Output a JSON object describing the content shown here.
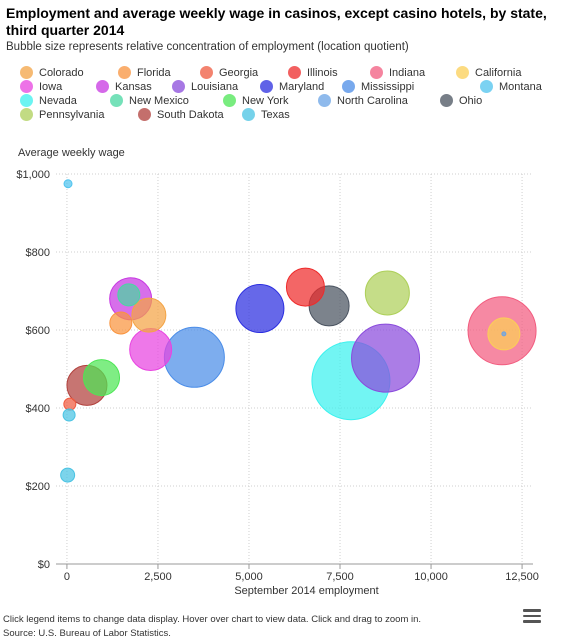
{
  "chart_data": {
    "type": "scatter",
    "title": "Employment and average weekly wage in casinos, except casino hotels, by state, third quarter 2014",
    "subtitle": "Bubble size represents relative concentration of employment (location quotient)",
    "xlabel": "September 2014 employment",
    "ylabel": "Average weekly wage",
    "xlim": [
      -300,
      12800
    ],
    "ylim": [
      0,
      1000
    ],
    "x_ticks": [
      0,
      2500,
      5000,
      7500,
      10000,
      12500
    ],
    "x_tick_labels": [
      "0",
      "2,500",
      "5,000",
      "7,500",
      "10,000",
      "12,500"
    ],
    "y_ticks": [
      0,
      200,
      400,
      600,
      800,
      1000
    ],
    "y_tick_labels": [
      "$0",
      "$200",
      "$400",
      "$600",
      "$800",
      "$1,000"
    ],
    "grid": true,
    "legend_position": "top",
    "series": [
      {
        "name": "Colorado",
        "color": "#f4a445",
        "x": 2250,
        "y": 638,
        "r": 17
      },
      {
        "name": "Florida",
        "color": "#f9943e",
        "x": 1480,
        "y": 618,
        "r": 11
      },
      {
        "name": "Georgia",
        "color": "#f05a3f",
        "x": 80,
        "y": 410,
        "r": 6
      },
      {
        "name": "Illinois",
        "color": "#ee2b2b",
        "x": 6550,
        "y": 710,
        "r": 19
      },
      {
        "name": "Indiana",
        "color": "#f25c7f",
        "x": 11950,
        "y": 598,
        "r": 34
      },
      {
        "name": "California",
        "color": "#fbcf57",
        "x": 12000,
        "y": 590,
        "r": 16
      },
      {
        "name": "Iowa",
        "color": "#e844e0",
        "x": 2300,
        "y": 550,
        "r": 21
      },
      {
        "name": "Kansas",
        "color": "#c737e2",
        "x": 1750,
        "y": 680,
        "r": 21
      },
      {
        "name": "Louisiana",
        "color": "#8a4bdc",
        "x": 8750,
        "y": 528,
        "r": 34
      },
      {
        "name": "Maryland",
        "color": "#2b2ee0",
        "x": 5300,
        "y": 655,
        "r": 24
      },
      {
        "name": "Mississippi",
        "color": "#4b8de8",
        "x": 3500,
        "y": 530,
        "r": 30
      },
      {
        "name": "Montana",
        "color": "#4fc3ee",
        "x": 30,
        "y": 975,
        "r": 4
      },
      {
        "name": "Nevada",
        "color": "#3bf1ee",
        "x": 7800,
        "y": 470,
        "r": 39
      },
      {
        "name": "New Mexico",
        "color": "#48d7a2",
        "x": 1700,
        "y": 690,
        "r": 11
      },
      {
        "name": "New York",
        "color": "#4de655",
        "x": 950,
        "y": 478,
        "r": 18
      },
      {
        "name": "North Carolina",
        "color": "#6aa4e6",
        "x": 12000,
        "y": 590,
        "r": 2
      },
      {
        "name": "Ohio",
        "color": "#4a5360",
        "x": 7200,
        "y": 662,
        "r": 20
      },
      {
        "name": "Pennsylvania",
        "color": "#aed05a",
        "x": 8800,
        "y": 695,
        "r": 22
      },
      {
        "name": "South Dakota",
        "color": "#b1403c",
        "x": 550,
        "y": 458,
        "r": 20
      },
      {
        "name": "Texas",
        "color": "#49c3e3",
        "x": 60,
        "y": 382,
        "r": 6
      },
      {
        "name": "Texas-2",
        "color": "#49c3e3",
        "x": 20,
        "y": 228,
        "r": 7
      }
    ]
  },
  "legend": {
    "items": [
      {
        "label": "Colorado",
        "color": "#f4a445"
      },
      {
        "label": "Florida",
        "color": "#f9943e"
      },
      {
        "label": "Georgia",
        "color": "#f05a3f"
      },
      {
        "label": "Illinois",
        "color": "#ee2b2b"
      },
      {
        "label": "Indiana",
        "color": "#f25c7f"
      },
      {
        "label": "California",
        "color": "#fbcf57"
      },
      {
        "label": "Iowa",
        "color": "#e844e0"
      },
      {
        "label": "Kansas",
        "color": "#c737e2"
      },
      {
        "label": "Louisiana",
        "color": "#8a4bdc"
      },
      {
        "label": "Maryland",
        "color": "#2b2ee0"
      },
      {
        "label": "Mississippi",
        "color": "#4b8de8"
      },
      {
        "label": "Montana",
        "color": "#4fc3ee"
      },
      {
        "label": "Nevada",
        "color": "#3bf1ee"
      },
      {
        "label": "New Mexico",
        "color": "#48d7a2"
      },
      {
        "label": "New York",
        "color": "#4de655"
      },
      {
        "label": "North Carolina",
        "color": "#6aa4e6"
      },
      {
        "label": "Ohio",
        "color": "#4a5360"
      },
      {
        "label": "Pennsylvania",
        "color": "#aed05a"
      },
      {
        "label": "South Dakota",
        "color": "#b1403c"
      },
      {
        "label": "Texas",
        "color": "#49c3e3"
      }
    ]
  },
  "footer": {
    "hint": "Click legend items to change data display. Hover over chart to view data. Click and drag to zoom in.",
    "source": "Source: U.S. Bureau of Labor Statistics."
  },
  "menu": {
    "icon": "hamburger-menu-icon"
  }
}
